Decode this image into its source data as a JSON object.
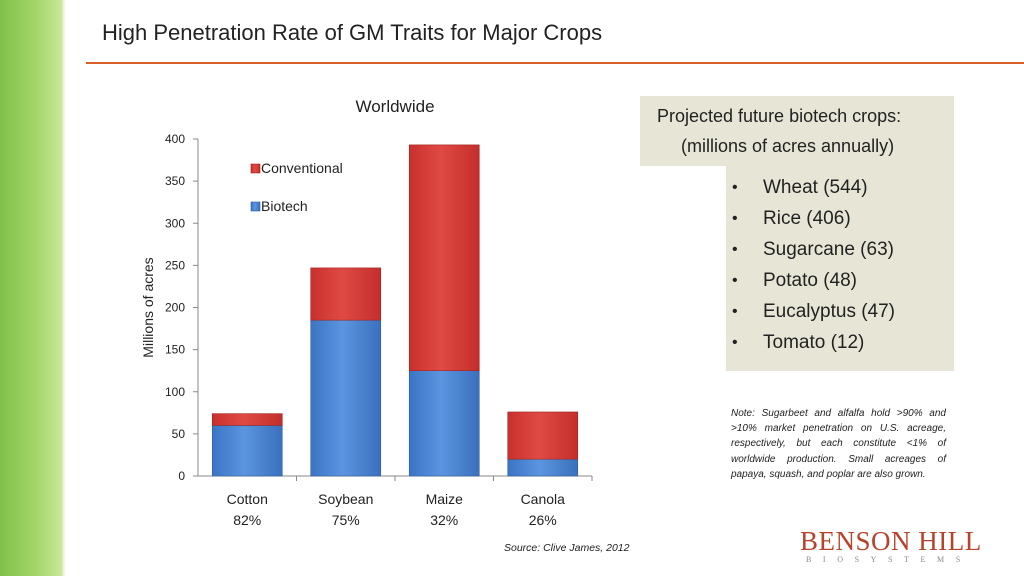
{
  "slide": {
    "title": "High Penetration Rate of GM Traits for Major Crops"
  },
  "projection": {
    "heading": "Projected future biotech crops:",
    "subheading": "(millions of acres annually)",
    "items": [
      "Wheat (544)",
      "Rice (406)",
      "Sugarcane (63)",
      "Potato (48)",
      "Eucalyptus (47)",
      "Tomato (12)"
    ],
    "bullet": "•"
  },
  "note": "Note: Sugarbeet and alfalfa hold >90% and >10% market penetration on U.S. acreage, respectively, but each constitute <1% of worldwide production. Small acreages of papaya, squash, and poplar are also grown.",
  "source": "Source: Clive James, 2012",
  "logo": {
    "name": "BENSON HILL",
    "tagline": "BIOSYSTEMS"
  },
  "colors": {
    "accent_rule": "#d9602a",
    "biotech": "#4a86d4",
    "conventional": "#d63a36",
    "panel": "#e7e6d6",
    "sidebar": "#8cc653"
  },
  "chart_data": {
    "type": "bar",
    "stacked": true,
    "title": "Worldwide",
    "ylabel": "Millions of acres",
    "xlabel": "",
    "ylim": [
      0,
      400
    ],
    "yticks": [
      0,
      50,
      100,
      150,
      200,
      250,
      300,
      350,
      400
    ],
    "categories": [
      "Cotton",
      "Soybean",
      "Maize",
      "Canola"
    ],
    "category_sublabels": [
      "82%",
      "75%",
      "32%",
      "26%"
    ],
    "series": [
      {
        "name": "Biotech",
        "color": "#4a86d4",
        "values": [
          60,
          185,
          125,
          20
        ]
      },
      {
        "name": "Conventional",
        "color": "#d63a36",
        "values": [
          14,
          62,
          268,
          56
        ]
      }
    ],
    "legend": {
      "position": "top-left",
      "order": [
        "Conventional",
        "Biotech"
      ]
    },
    "grid": false
  }
}
